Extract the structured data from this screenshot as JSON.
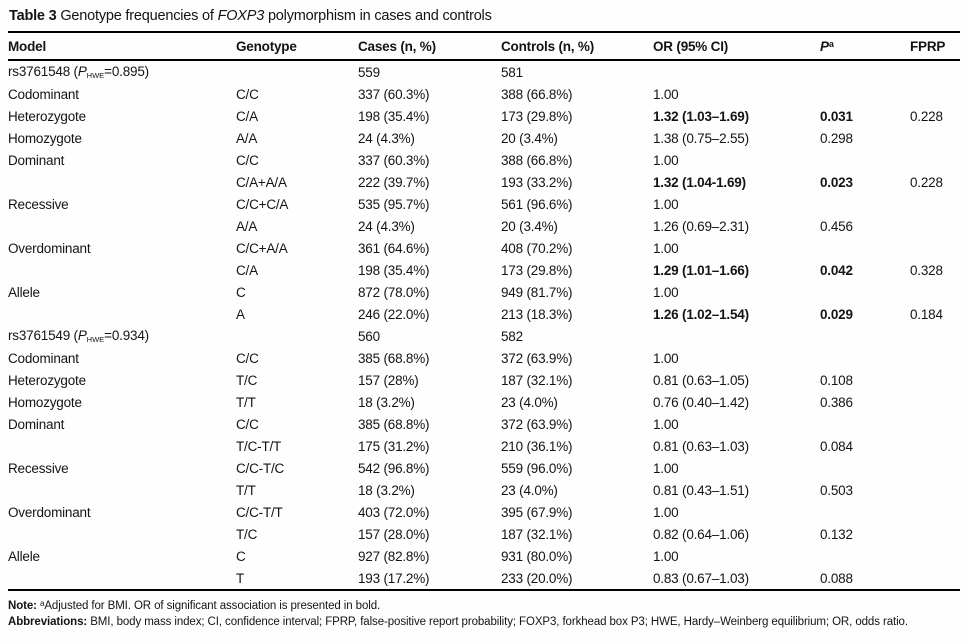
{
  "title": {
    "bold": "Table 3",
    "pre": " Genotype frequencies of ",
    "gene": "FOXP3",
    "post": " polymorphism in cases and controls"
  },
  "columns": [
    "Model",
    "Genotype",
    "Cases (n, %)",
    "Controls (n, %)",
    "OR (95% CI)",
    "P",
    "FPRP"
  ],
  "header_p": {
    "label": "P",
    "sup": "a"
  },
  "rows": [
    {
      "section": {
        "text": "rs3761548 (",
        "p": "P",
        "sub": "HWE",
        "post": "=0.895)"
      },
      "genotype": "",
      "cases": "559",
      "controls": "581",
      "or": "",
      "p": "",
      "fprp": "",
      "bold": false
    },
    {
      "model": "Codominant",
      "genotype": "C/C",
      "cases": "337 (60.3%)",
      "controls": "388 (66.8%)",
      "or": "1.00",
      "p": "",
      "fprp": "",
      "bold": false
    },
    {
      "model": "Heterozygote",
      "genotype": "C/A",
      "cases": "198 (35.4%)",
      "controls": "173 (29.8%)",
      "or": "1.32 (1.03–1.69)",
      "p": "0.031",
      "fprp": "0.228",
      "bold": true
    },
    {
      "model": "Homozygote",
      "genotype": "A/A",
      "cases": "24 (4.3%)",
      "controls": "20 (3.4%)",
      "or": "1.38 (0.75–2.55)",
      "p": "0.298",
      "fprp": "",
      "bold": false
    },
    {
      "model": "Dominant",
      "genotype": "C/C",
      "cases": "337 (60.3%)",
      "controls": "388 (66.8%)",
      "or": "1.00",
      "p": "",
      "fprp": "",
      "bold": false
    },
    {
      "model": "",
      "genotype": "C/A+A/A",
      "cases": "222 (39.7%)",
      "controls": "193 (33.2%)",
      "or": "1.32 (1.04-1.69)",
      "p": "0.023",
      "fprp": "0.228",
      "bold": true
    },
    {
      "model": "Recessive",
      "genotype": "C/C+C/A",
      "cases": "535 (95.7%)",
      "controls": "561 (96.6%)",
      "or": "1.00",
      "p": "",
      "fprp": "",
      "bold": false
    },
    {
      "model": "",
      "genotype": "A/A",
      "cases": "24 (4.3%)",
      "controls": "20 (3.4%)",
      "or": "1.26 (0.69–2.31)",
      "p": "0.456",
      "fprp": "",
      "bold": false
    },
    {
      "model": "Overdominant",
      "genotype": "C/C+A/A",
      "cases": "361 (64.6%)",
      "controls": "408 (70.2%)",
      "or": "1.00",
      "p": "",
      "fprp": "",
      "bold": false
    },
    {
      "model": "",
      "genotype": "C/A",
      "cases": "198 (35.4%)",
      "controls": "173 (29.8%)",
      "or": "1.29 (1.01–1.66)",
      "p": "0.042",
      "fprp": "0.328",
      "bold": true
    },
    {
      "model": "Allele",
      "genotype": "C",
      "cases": "872 (78.0%)",
      "controls": "949 (81.7%)",
      "or": "1.00",
      "p": "",
      "fprp": "",
      "bold": false
    },
    {
      "model": "",
      "genotype": "A",
      "cases": "246 (22.0%)",
      "controls": "213 (18.3%)",
      "or": "1.26 (1.02–1.54)",
      "p": "0.029",
      "fprp": "0.184",
      "bold": true
    },
    {
      "section": {
        "text": "rs3761549 (",
        "p": "P",
        "sub": "HWE",
        "post": "=0.934)"
      },
      "genotype": "",
      "cases": "560",
      "controls": "582",
      "or": "",
      "p": "",
      "fprp": "",
      "bold": false
    },
    {
      "model": "Codominant",
      "genotype": "C/C",
      "cases": "385 (68.8%)",
      "controls": "372 (63.9%)",
      "or": "1.00",
      "p": "",
      "fprp": "",
      "bold": false
    },
    {
      "model": "Heterozygote",
      "genotype": "T/C",
      "cases": "157 (28%)",
      "controls": "187 (32.1%)",
      "or": "0.81 (0.63–1.05)",
      "p": "0.108",
      "fprp": "",
      "bold": false
    },
    {
      "model": "Homozygote",
      "genotype": "T/T",
      "cases": "18 (3.2%)",
      "controls": "23 (4.0%)",
      "or": "0.76 (0.40–1.42)",
      "p": "0.386",
      "fprp": "",
      "bold": false
    },
    {
      "model": "Dominant",
      "genotype": "C/C",
      "cases": "385 (68.8%)",
      "controls": "372 (63.9%)",
      "or": "1.00",
      "p": "",
      "fprp": "",
      "bold": false
    },
    {
      "model": "",
      "genotype": "T/C-T/T",
      "cases": "175 (31.2%)",
      "controls": "210 (36.1%)",
      "or": "0.81 (0.63–1.03)",
      "p": "0.084",
      "fprp": "",
      "bold": false
    },
    {
      "model": "Recessive",
      "genotype": "C/C-T/C",
      "cases": "542 (96.8%)",
      "controls": "559 (96.0%)",
      "or": "1.00",
      "p": "",
      "fprp": "",
      "bold": false
    },
    {
      "model": "",
      "genotype": "T/T",
      "cases": "18 (3.2%)",
      "controls": "23 (4.0%)",
      "or": "0.81 (0.43–1.51)",
      "p": "0.503",
      "fprp": "",
      "bold": false
    },
    {
      "model": "Overdominant",
      "genotype": "C/C-T/T",
      "cases": "403 (72.0%)",
      "controls": "395 (67.9%)",
      "or": "1.00",
      "p": "",
      "fprp": "",
      "bold": false
    },
    {
      "model": "",
      "genotype": "T/C",
      "cases": "157 (28.0%)",
      "controls": "187 (32.1%)",
      "or": "0.82 (0.64–1.06)",
      "p": "0.132",
      "fprp": "",
      "bold": false
    },
    {
      "model": "Allele",
      "genotype": "C",
      "cases": "927 (82.8%)",
      "controls": "931 (80.0%)",
      "or": "1.00",
      "p": "",
      "fprp": "",
      "bold": false
    },
    {
      "model": "",
      "genotype": "T",
      "cases": "193 (17.2%)",
      "controls": "233 (20.0%)",
      "or": "0.83 (0.67–1.03)",
      "p": "0.088",
      "fprp": "",
      "bold": false
    }
  ],
  "notes": {
    "note_label": "Note:",
    "note_sup": "a",
    "note_text": "Adjusted for BMI. OR of significant association is presented in bold.",
    "abbr_label": "Abbreviations:",
    "abbr_text": "BMI, body mass index; CI, confidence interval; FPRP, false-positive report probability; FOXP3, forkhead box P3; HWE, Hardy–Weinberg equilibrium; OR, odds ratio."
  }
}
